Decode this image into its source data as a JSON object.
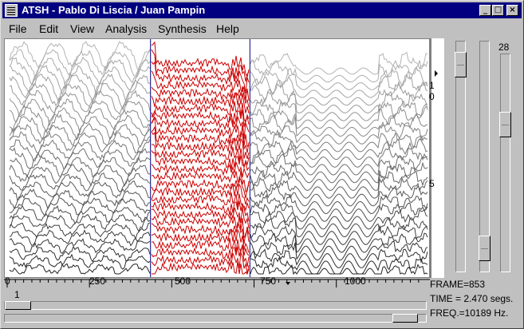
{
  "window": {
    "title": "ATSH - Pablo Di Liscia / Juan Pampin",
    "controls": {
      "minimize": "_",
      "maximize": "□",
      "close": "×"
    }
  },
  "menu": {
    "items": [
      "File",
      "Edit",
      "View",
      "Analysis",
      "Synthesis",
      "Help"
    ]
  },
  "plot": {
    "selection_color": "#cc0000",
    "selection_range": [
      433,
      735
    ],
    "frame_range": [
      0,
      1260
    ],
    "partial_count": 28
  },
  "time_axis": {
    "tick_labels": [
      "0",
      "250",
      "500",
      "750",
      "1000"
    ],
    "tick_values": [
      0,
      250,
      500,
      750,
      1000
    ]
  },
  "freq_scale": {
    "labels": [
      "1",
      "0",
      "5"
    ]
  },
  "right_sliders": {
    "top_label": "28",
    "slider1_level": 0.05,
    "slider2_level": 0.95,
    "slider3_level": 0.3
  },
  "status": {
    "frame": "FRAME=853",
    "time": "TIME = 2.470 segs.",
    "freq": "FREQ.=10189 Hz."
  },
  "bottom": {
    "partial_label": "1",
    "scroll_level": 0.02
  }
}
